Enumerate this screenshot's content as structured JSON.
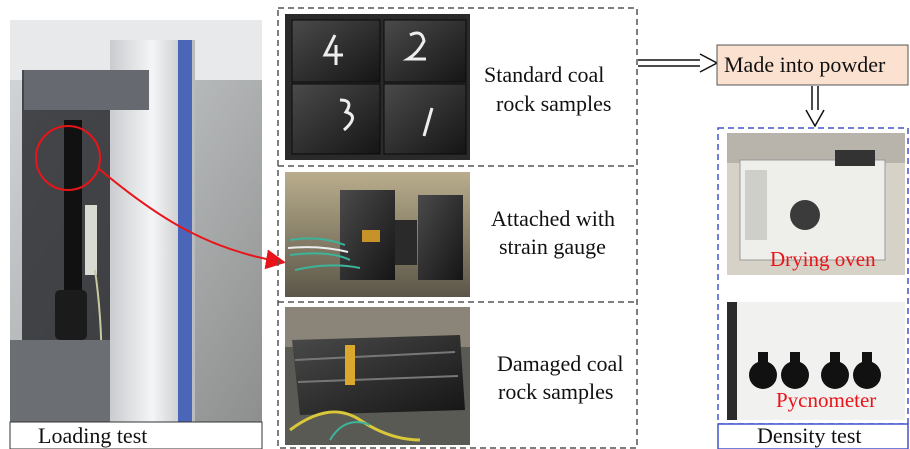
{
  "left_panel": {
    "caption": "Loading test"
  },
  "samples_panel": {
    "steps": [
      {
        "lines": [
          "Standard coal",
          "rock samples"
        ]
      },
      {
        "lines": [
          "Attached with",
          "strain gauge"
        ]
      },
      {
        "lines": [
          "Damaged coal",
          "rock samples"
        ]
      }
    ]
  },
  "process": {
    "label": "Made into powder"
  },
  "density_panel": {
    "photos": [
      {
        "label": "Drying oven"
      },
      {
        "label": "Pycnometer"
      }
    ],
    "caption": "Density test"
  }
}
